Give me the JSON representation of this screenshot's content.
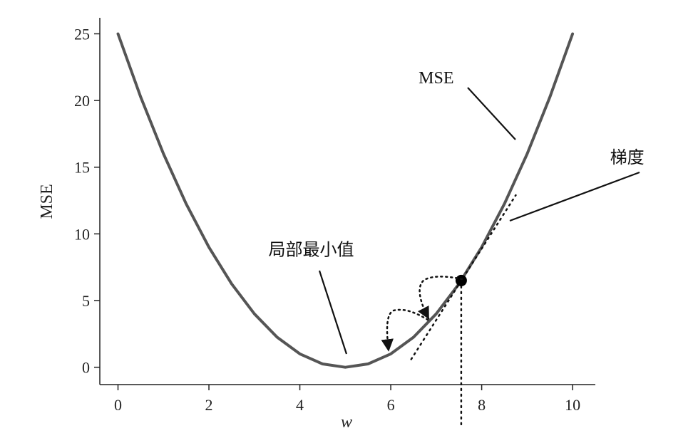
{
  "chart_data": {
    "type": "line",
    "title": "",
    "xlabel": "w",
    "ylabel": "MSE",
    "xlim": [
      -0.4,
      10.5
    ],
    "ylim": [
      -1.3,
      26.2
    ],
    "xticks": [
      0,
      2,
      4,
      6,
      8,
      10
    ],
    "yticks": [
      0,
      5,
      10,
      15,
      20,
      25
    ],
    "grid": false,
    "series": [
      {
        "x": [
          0,
          0.5,
          1,
          1.5,
          2,
          2.5,
          3,
          3.5,
          4,
          4.5,
          5,
          5.5,
          6,
          6.5,
          7,
          7.5,
          8,
          8.5,
          9,
          9.5,
          10
        ],
        "y": [
          25,
          20.25,
          16,
          12.25,
          9,
          6.25,
          4,
          2.25,
          1,
          0.25,
          0,
          0.25,
          1,
          2.25,
          4,
          6.25,
          9,
          12.25,
          16,
          20.25,
          25
        ]
      }
    ],
    "point": {
      "x": 7.55,
      "y": 6.5
    },
    "tangent": {
      "x": [
        6.45,
        8.75
      ],
      "y": [
        0.6,
        12.9
      ]
    },
    "annotations": [
      {
        "text": "MSE",
        "x": 7.0,
        "y": 21.3
      },
      {
        "text": "梯度",
        "x": 11.2,
        "y": 15.3
      },
      {
        "text": "局部最小值",
        "x": 4.25,
        "y": 8.4
      }
    ]
  }
}
